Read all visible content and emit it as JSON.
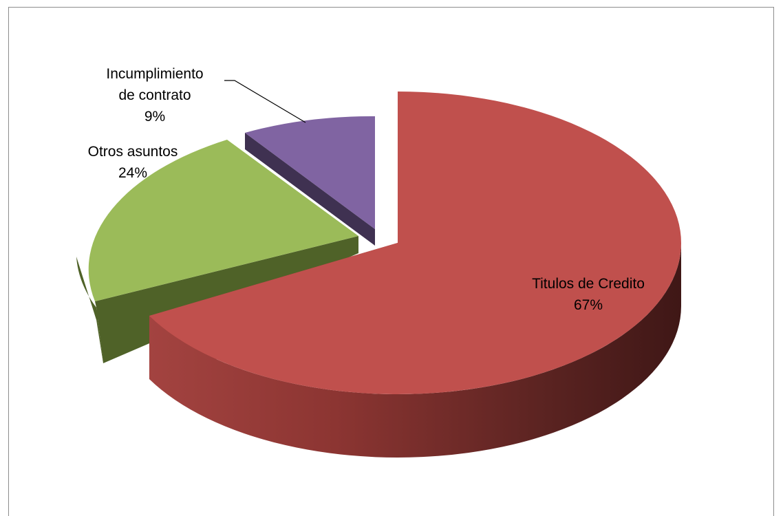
{
  "chart_data": {
    "type": "pie",
    "style": "3d-exploded",
    "slices": [
      {
        "label": "Titulos de Credito",
        "value": 67,
        "percent_label": "67%",
        "color": "#C0504D"
      },
      {
        "label": "Otros asuntos",
        "value": 24,
        "percent_label": "24%",
        "color": "#9BBB59"
      },
      {
        "label": "Incumplimiento de contrato",
        "value": 9,
        "percent_label": "9%",
        "color": "#8064A2"
      }
    ],
    "title": "",
    "legend": "none",
    "data_labels": "category and percentage"
  }
}
